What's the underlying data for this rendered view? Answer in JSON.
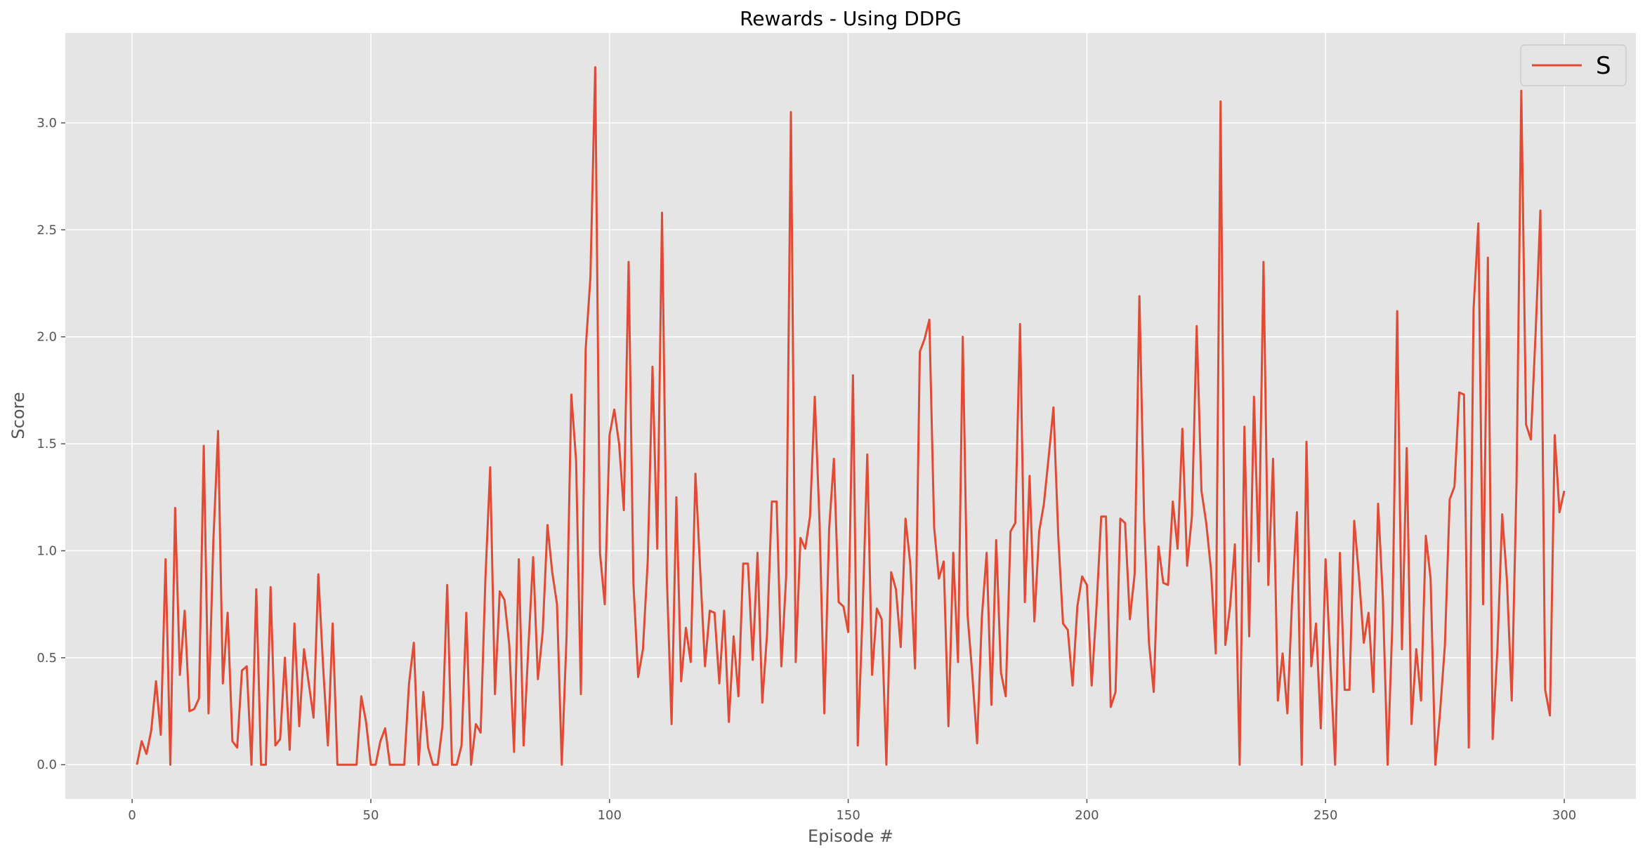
{
  "chart_data": {
    "type": "line",
    "title": "Rewards - Using DDPG",
    "xlabel": "Episode #",
    "ylabel": "Score",
    "xlim": [
      -14,
      315
    ],
    "ylim": [
      -0.16,
      3.42
    ],
    "xticks": [
      0,
      50,
      100,
      150,
      200,
      250,
      300
    ],
    "yticks": [
      0.0,
      0.5,
      1.0,
      1.5,
      2.0,
      2.5,
      3.0
    ],
    "xtick_labels": [
      "0",
      "50",
      "100",
      "150",
      "200",
      "250",
      "300"
    ],
    "ytick_labels": [
      "0.0",
      "0.5",
      "1.0",
      "1.5",
      "2.0",
      "2.5",
      "3.0"
    ],
    "grid": true,
    "legend": {
      "position": "top-right",
      "entries": [
        "S"
      ]
    },
    "colors": {
      "line": "#e24a33",
      "plot_background": "#e5e5e5",
      "grid": "#ffffff"
    },
    "series": [
      {
        "name": "S",
        "x_start": 1,
        "x_step": 1,
        "values": [
          0.0,
          0.11,
          0.05,
          0.16,
          0.39,
          0.14,
          0.96,
          0.0,
          1.2,
          0.42,
          0.72,
          0.25,
          0.26,
          0.31,
          1.49,
          0.24,
          1.04,
          1.56,
          0.38,
          0.71,
          0.11,
          0.08,
          0.44,
          0.46,
          0.0,
          0.82,
          0.0,
          0.0,
          0.83,
          0.09,
          0.12,
          0.5,
          0.07,
          0.66,
          0.18,
          0.54,
          0.38,
          0.22,
          0.89,
          0.46,
          0.09,
          0.66,
          0.0,
          0.0,
          0.0,
          0.0,
          0.0,
          0.32,
          0.2,
          0.0,
          0.0,
          0.11,
          0.17,
          0.0,
          0.0,
          0.0,
          0.0,
          0.38,
          0.57,
          0.0,
          0.34,
          0.08,
          0.0,
          0.0,
          0.18,
          0.84,
          0.0,
          0.0,
          0.09,
          0.71,
          0.0,
          0.19,
          0.15,
          0.87,
          1.39,
          0.33,
          0.81,
          0.77,
          0.56,
          0.06,
          0.96,
          0.09,
          0.55,
          0.97,
          0.4,
          0.62,
          1.12,
          0.9,
          0.75,
          0.0,
          0.6,
          1.73,
          1.42,
          0.33,
          1.94,
          2.28,
          3.26,
          0.99,
          0.75,
          1.54,
          1.66,
          1.5,
          1.19,
          2.35,
          0.85,
          0.41,
          0.54,
          0.95,
          1.86,
          1.01,
          2.58,
          0.88,
          0.19,
          1.25,
          0.39,
          0.64,
          0.48,
          1.36,
          0.91,
          0.46,
          0.72,
          0.71,
          0.38,
          0.72,
          0.2,
          0.6,
          0.32,
          0.94,
          0.94,
          0.49,
          0.99,
          0.29,
          0.61,
          1.23,
          1.23,
          0.46,
          0.88,
          3.05,
          0.48,
          1.06,
          1.01,
          1.16,
          1.72,
          1.13,
          0.24,
          1.1,
          1.43,
          0.76,
          0.74,
          0.62,
          1.82,
          0.09,
          0.7,
          1.45,
          0.42,
          0.73,
          0.68,
          0.0,
          0.9,
          0.82,
          0.55,
          1.15,
          0.94,
          0.45,
          1.93,
          1.99,
          2.08,
          1.11,
          0.87,
          0.95,
          0.18,
          0.99,
          0.48,
          2.0,
          0.7,
          0.42,
          0.1,
          0.69,
          0.99,
          0.28,
          1.05,
          0.43,
          0.32,
          1.09,
          1.13,
          2.06,
          0.76,
          1.35,
          0.67,
          1.09,
          1.22,
          1.44,
          1.67,
          1.07,
          0.66,
          0.63,
          0.37,
          0.74,
          0.88,
          0.84,
          0.37,
          0.73,
          1.16,
          1.16,
          0.27,
          0.34,
          1.15,
          1.13,
          0.68,
          0.89,
          2.19,
          1.14,
          0.57,
          0.34,
          1.02,
          0.85,
          0.84,
          1.23,
          1.01,
          1.57,
          0.93,
          1.16,
          2.05,
          1.28,
          1.13,
          0.91,
          0.52,
          3.1,
          0.56,
          0.74,
          1.03,
          0.0,
          1.58,
          0.6,
          1.72,
          0.95,
          2.35,
          0.84,
          1.43,
          0.3,
          0.52,
          0.24,
          0.78,
          1.18,
          0.0,
          1.51,
          0.46,
          0.66,
          0.17,
          0.96,
          0.48,
          0.0,
          0.99,
          0.35,
          0.35,
          1.14,
          0.88,
          0.57,
          0.71,
          0.34,
          1.22,
          0.78,
          0.0,
          0.67,
          2.12,
          0.54,
          1.48,
          0.19,
          0.54,
          0.3,
          1.07,
          0.87,
          0.0,
          0.25,
          0.56,
          1.24,
          1.3,
          1.74,
          1.73,
          0.08,
          2.13,
          2.53,
          0.75,
          2.37,
          0.12,
          0.54,
          1.17,
          0.86,
          0.3,
          1.32,
          3.15,
          1.59,
          1.52,
          2.02,
          2.59,
          0.35,
          0.23,
          1.54,
          1.18,
          1.28
        ]
      }
    ]
  }
}
